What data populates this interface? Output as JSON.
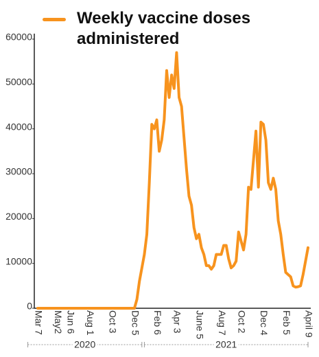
{
  "chart_data": {
    "type": "line",
    "categories": [
      "Mar 7",
      null,
      null,
      null,
      null,
      null,
      null,
      null,
      "May2",
      null,
      null,
      null,
      null,
      "Jun 6",
      null,
      null,
      null,
      null,
      null,
      null,
      null,
      "Aug 1",
      null,
      null,
      null,
      null,
      null,
      null,
      null,
      null,
      "Oct 3",
      null,
      null,
      null,
      null,
      null,
      null,
      null,
      null,
      "Dec 5",
      null,
      null,
      null,
      null,
      null,
      null,
      null,
      null,
      "Feb 6",
      null,
      null,
      null,
      null,
      null,
      null,
      null,
      "Apr 3",
      null,
      null,
      null,
      null,
      null,
      null,
      null,
      null,
      "June 5",
      null,
      null,
      null,
      null,
      null,
      null,
      null,
      null,
      "Aug 7",
      null,
      null,
      null,
      null,
      null,
      null,
      null,
      "Oct 2",
      null,
      null,
      null,
      null,
      null,
      null,
      null,
      null,
      "Dec 4",
      null,
      null,
      null,
      null,
      null,
      null,
      null,
      null,
      "Feb 5",
      null,
      null,
      null,
      null,
      null,
      null,
      null,
      null,
      "April 9"
    ],
    "series": [
      {
        "name": "Weekly vaccine doses administered",
        "color": "#f7931e",
        "values": [
          0,
          0,
          0,
          0,
          0,
          0,
          0,
          0,
          0,
          0,
          0,
          0,
          0,
          0,
          0,
          0,
          0,
          0,
          0,
          0,
          0,
          0,
          0,
          0,
          0,
          0,
          0,
          0,
          0,
          0,
          0,
          0,
          0,
          0,
          0,
          0,
          0,
          0,
          0,
          0,
          2000,
          6000,
          9000,
          12000,
          16500,
          28000,
          41000,
          40000,
          42000,
          35000,
          37500,
          42000,
          53000,
          47000,
          52000,
          49000,
          57000,
          47000,
          45000,
          38000,
          31000,
          25000,
          23000,
          18000,
          15500,
          16500,
          13500,
          12000,
          9500,
          9500,
          8700,
          9500,
          12000,
          12000,
          12000,
          14000,
          14000,
          11000,
          9000,
          9500,
          10500,
          17000,
          15000,
          13000,
          16500,
          27000,
          26500,
          33000,
          39500,
          27000,
          41500,
          41000,
          37500,
          28000,
          26500,
          29000,
          26500,
          19500,
          16500,
          12000,
          8000,
          7500,
          7000,
          5000,
          4700,
          4800,
          5000,
          7500,
          10500,
          13500
        ]
      }
    ],
    "year_groups": [
      "2020",
      "2021"
    ],
    "ylim": [
      0,
      60000
    ],
    "yticks": [
      0,
      10000,
      20000,
      30000,
      40000,
      50000,
      60000
    ],
    "grid": false
  }
}
